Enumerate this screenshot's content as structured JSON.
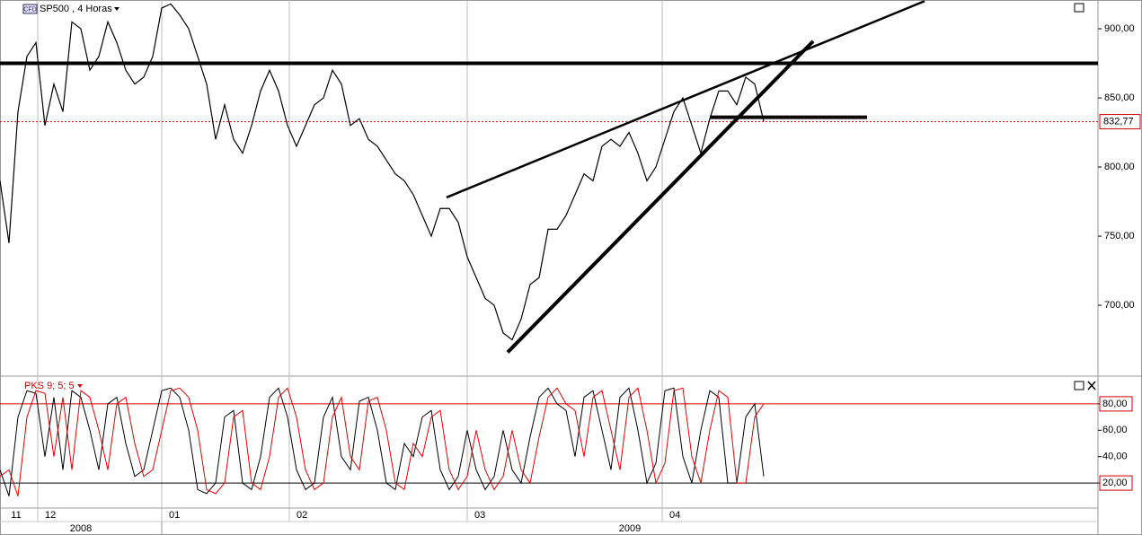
{
  "chart_data": [
    {
      "type": "line",
      "title": "SP500 , 4 Horas",
      "badge": "CFD",
      "ylim": [
        649.4,
        920.8
      ],
      "yticks": [
        {
          "value": 700,
          "label": "700,00"
        },
        {
          "value": 750,
          "label": "750,00"
        },
        {
          "value": 800,
          "label": "800,00"
        },
        {
          "value": 850,
          "label": "850,00"
        },
        {
          "value": 900,
          "label": "900,00"
        }
      ],
      "series": [
        {
          "color": "#000000",
          "values": [
            790,
            745,
            840,
            880,
            890,
            830,
            860,
            840,
            905,
            900,
            870,
            880,
            905,
            890,
            870,
            860,
            865,
            880,
            915,
            918,
            910,
            900,
            880,
            860,
            820,
            845,
            820,
            810,
            830,
            855,
            870,
            855,
            830,
            815,
            830,
            845,
            850,
            870,
            860,
            830,
            835,
            820,
            815,
            805,
            795,
            790,
            780,
            765,
            750,
            770,
            770,
            760,
            735,
            720,
            705,
            700,
            680,
            675,
            690,
            715,
            720,
            755,
            755,
            765,
            780,
            795,
            790,
            815,
            820,
            815,
            825,
            810,
            790,
            800,
            820,
            840,
            850,
            830,
            810,
            835,
            855,
            855,
            845,
            865,
            860,
            833
          ]
        }
      ],
      "hlines": [
        {
          "value": 875,
          "color": "#000000"
        }
      ],
      "last_price": {
        "value": 832.77,
        "label": "832,77",
        "color": "#cc0000"
      },
      "trendlines": [
        {
          "x": [
            49.7,
            102.9
          ],
          "y": [
            778,
            920
          ]
        },
        {
          "x": [
            56.5,
            90.5
          ],
          "y": [
            666,
            891
          ]
        },
        {
          "x": [
            79,
            96.5
          ],
          "y": [
            836,
            836
          ]
        }
      ],
      "xticks": [
        {
          "value": 0,
          "label": "11"
        },
        {
          "value": 4.2,
          "label": "12"
        },
        {
          "value": 18,
          "label": "01"
        },
        {
          "value": 32.2,
          "label": "02"
        },
        {
          "value": 52,
          "label": "03"
        },
        {
          "value": 73.7,
          "label": "04"
        }
      ],
      "year_ticks": [
        {
          "value": 0,
          "label": "2008"
        },
        {
          "value": 18,
          "label": "2009"
        }
      ]
    },
    {
      "type": "line",
      "title": "PKS 9; 5; 5",
      "ylim": [
        1,
        99
      ],
      "yticks": [
        {
          "value": 20,
          "label": "20,00"
        },
        {
          "value": 40,
          "label": "40,00"
        },
        {
          "value": 60,
          "label": "60,00"
        },
        {
          "value": 80,
          "label": "80,00"
        }
      ],
      "levels": [
        80,
        20
      ],
      "series": [
        {
          "color": "#000000",
          "values": [
            30,
            10,
            70,
            90,
            88,
            40,
            85,
            30,
            90,
            85,
            60,
            30,
            80,
            85,
            50,
            25,
            30,
            60,
            90,
            92,
            85,
            60,
            15,
            12,
            20,
            70,
            75,
            20,
            15,
            40,
            85,
            92,
            70,
            30,
            15,
            20,
            70,
            85,
            40,
            30,
            82,
            85,
            60,
            20,
            15,
            50,
            40,
            70,
            75,
            30,
            15,
            25,
            60,
            30,
            15,
            25,
            60,
            30,
            20,
            55,
            85,
            92,
            80,
            75,
            40,
            85,
            90,
            60,
            30,
            85,
            92,
            60,
            20,
            35,
            90,
            92,
            40,
            20,
            60,
            90,
            85,
            20,
            20,
            70,
            80,
            25
          ]
        },
        {
          "color": "#e00000",
          "values": [
            25,
            30,
            10,
            70,
            90,
            88,
            40,
            85,
            30,
            90,
            85,
            60,
            30,
            80,
            85,
            50,
            25,
            30,
            60,
            90,
            92,
            85,
            60,
            15,
            12,
            20,
            70,
            75,
            20,
            15,
            40,
            85,
            92,
            70,
            30,
            15,
            20,
            70,
            85,
            40,
            30,
            82,
            85,
            60,
            20,
            15,
            50,
            40,
            70,
            75,
            30,
            15,
            25,
            60,
            30,
            15,
            25,
            60,
            30,
            20,
            55,
            85,
            92,
            80,
            75,
            40,
            85,
            90,
            60,
            30,
            85,
            92,
            60,
            20,
            35,
            90,
            92,
            40,
            20,
            60,
            90,
            85,
            20,
            20,
            70,
            80
          ]
        }
      ]
    }
  ]
}
